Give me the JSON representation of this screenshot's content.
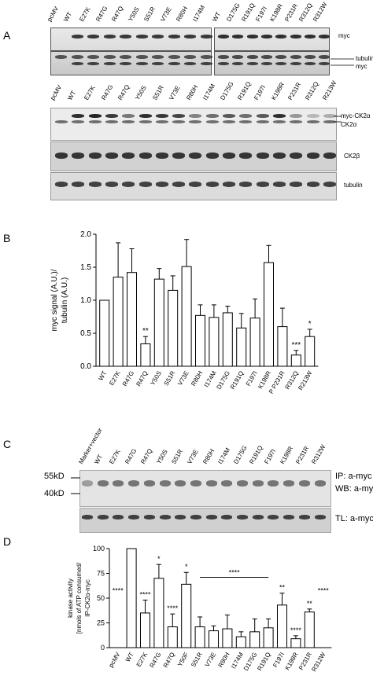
{
  "panels": {
    "A": {
      "letter": "A",
      "top_left_lanes": [
        "pcMV",
        "WT",
        "E27K",
        "R47G",
        "R47Q",
        "Y50S",
        "S51R",
        "V73E",
        "R80H",
        "I174M"
      ],
      "top_right_lanes": [
        "WT",
        "D175G",
        "R191Q",
        "F197I",
        "K198R",
        "P231R",
        "R312Q",
        "R312W"
      ],
      "top_labels": {
        "myc": "myc",
        "tubulin": "tubulin",
        "myc2": "myc"
      },
      "mid_lanes": [
        "pcMV",
        "WT",
        "E27K",
        "R47G",
        "R47Q",
        "Y50S",
        "S51R",
        "V73E",
        "R80H",
        "I174M",
        "D175G",
        "R191Q",
        "F197I",
        "K198R",
        "P231R",
        "R312Q",
        "R213W"
      ],
      "mid_labels": {
        "myc_ck2a": "myc-CK2α",
        "ck2a": "CK2α",
        "ck2b": "CK2β",
        "tubulin": "tubulin"
      }
    },
    "B": {
      "letter": "B",
      "chart_data": {
        "type": "bar",
        "categories": [
          "WT",
          "E27K",
          "R47G",
          "R47Q",
          "Y50S",
          "S51R",
          "V73E",
          "R80H",
          "I174M",
          "D175G",
          "R191Q",
          "F197I",
          "K198R",
          "P P231R",
          "R312Q",
          "R213W"
        ],
        "values": [
          1.0,
          1.35,
          1.42,
          0.34,
          1.32,
          1.15,
          1.51,
          0.77,
          0.74,
          0.81,
          0.58,
          0.73,
          1.57,
          0.6,
          0.17,
          0.45
        ],
        "errors": [
          0,
          0.52,
          0.36,
          0.11,
          0.16,
          0.22,
          0.41,
          0.16,
          0.19,
          0.1,
          0.22,
          0.29,
          0.26,
          0.28,
          0.07,
          0.11
        ],
        "annotations": {
          "R47Q": "**",
          "R312Q": "***",
          "R213W": "*"
        },
        "ylabel_line1": "myc signal (A.U.)/",
        "ylabel_line2": "tubulin (A.U.)",
        "ylim": [
          0,
          2.0
        ],
        "yticks": [
          "0.0",
          "0.5",
          "1.0",
          "1.5",
          "2.0"
        ]
      }
    },
    "C": {
      "letter": "C",
      "lanes": [
        "Marker+vector",
        "WT",
        "E27K",
        "R47G",
        "R47Q",
        "Y50S",
        "S51R",
        "V73E",
        "R80H",
        "I174M",
        "D175G",
        "R191Q",
        "F197I",
        "K198R",
        "P231R",
        "R312W"
      ],
      "markers": {
        "m55": "55kD",
        "m40": "40kD"
      },
      "labels": {
        "ip": "IP: a-myc",
        "wb": "WB: a-myc",
        "tl": "TL: a-myc"
      }
    },
    "D": {
      "letter": "D",
      "chart_data": {
        "type": "bar",
        "categories": [
          "pcMV",
          "WT",
          "E27K",
          "R47G",
          "R47Q",
          "Y50F",
          "S51R",
          "V73E",
          "R80H",
          "I174M",
          "D175G",
          "R191Q",
          "F197I",
          "K198R",
          "P231R",
          "R312W"
        ],
        "values": [
          0,
          100,
          35,
          70,
          21,
          64,
          21,
          17,
          19,
          11,
          16,
          20,
          43,
          9,
          36,
          0
        ],
        "errors": [
          0,
          0,
          13,
          14,
          13,
          12,
          10,
          5,
          14,
          5,
          13,
          9,
          12,
          3,
          3,
          0
        ],
        "annotations": {
          "pcMV": "****",
          "E27K": "****",
          "R47G": "*",
          "R47Q": "****",
          "Y50F": "*",
          "bracket": "****",
          "F197I": "**",
          "K198R": "****",
          "P231R": "**",
          "R312W": "****"
        },
        "ylabel_line1": "kinase activity",
        "ylabel_line2": "[nmols of ATP consumed/",
        "ylabel_line3": "IP-CK2α-myc",
        "ylim": [
          0,
          100
        ],
        "yticks": [
          "0",
          "25",
          "50",
          "75",
          "100"
        ]
      }
    }
  }
}
